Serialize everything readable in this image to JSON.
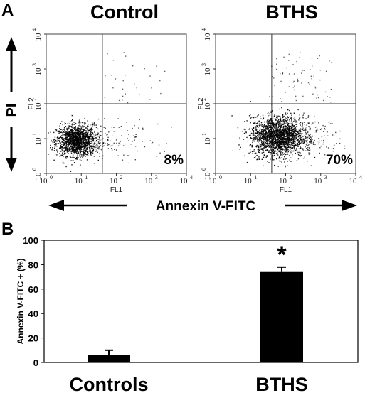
{
  "chart_data": [
    {
      "type": "scatter",
      "panel_label": "A",
      "title": "Control",
      "percent_annexin_positive_label": "8%",
      "percent_annexin_positive": 8,
      "x_channel": "FL1",
      "y_channel": "FL2",
      "x_scale": "log",
      "y_scale": "log",
      "xlim": [
        1,
        10000
      ],
      "ylim": [
        1,
        10000
      ],
      "x_tick_bases": [
        "10",
        "10",
        "10",
        "10",
        "10"
      ],
      "x_tick_exponents": [
        "0",
        "1",
        "2",
        "3",
        "4"
      ],
      "y_tick_bases": [
        "10",
        "10",
        "10",
        "10",
        "10"
      ],
      "y_tick_exponents": [
        "0",
        "1",
        "2",
        "3",
        "4"
      ],
      "quadrant_gate": {
        "x": 40,
        "y": 100
      },
      "main_population": {
        "x_center": 7,
        "y_center": 9,
        "spread_x_decades": 0.28,
        "spread_y_decades": 0.22
      },
      "grid": false
    },
    {
      "type": "scatter",
      "title": "BTHS",
      "percent_annexin_positive_label": "70%",
      "percent_annexin_positive": 70,
      "x_channel": "FL1",
      "y_channel": "FL2",
      "x_scale": "log",
      "y_scale": "log",
      "xlim": [
        1,
        10000
      ],
      "ylim": [
        1,
        10000
      ],
      "x_tick_bases": [
        "10",
        "10",
        "10",
        "10",
        "10"
      ],
      "x_tick_exponents": [
        "0",
        "1",
        "2",
        "3",
        "4"
      ],
      "y_tick_bases": [
        "10",
        "10",
        "10",
        "10",
        "10"
      ],
      "y_tick_exponents": [
        "0",
        "1",
        "2",
        "3",
        "4"
      ],
      "quadrant_gate": {
        "x": 40,
        "y": 100
      },
      "main_population": {
        "x_center": 55,
        "y_center": 12,
        "spread_x_decades": 0.38,
        "spread_y_decades": 0.28
      },
      "grid": false
    },
    {
      "type": "bar",
      "panel_label": "B",
      "categories": [
        "Controls",
        "BTHS"
      ],
      "values": [
        6,
        74
      ],
      "error_bars": [
        4,
        4
      ],
      "ylabel": "Annexin V-FITC + (%)",
      "ylim": [
        0,
        100
      ],
      "y_ticks": [
        "0",
        "20",
        "40",
        "60",
        "80",
        "100"
      ],
      "significance_marker": "*",
      "significance_on": "BTHS",
      "bar_color": "#000000",
      "grid": false
    }
  ],
  "shared_labels": {
    "x_axis": "Annexin V-FITC",
    "y_axis": "PI"
  }
}
